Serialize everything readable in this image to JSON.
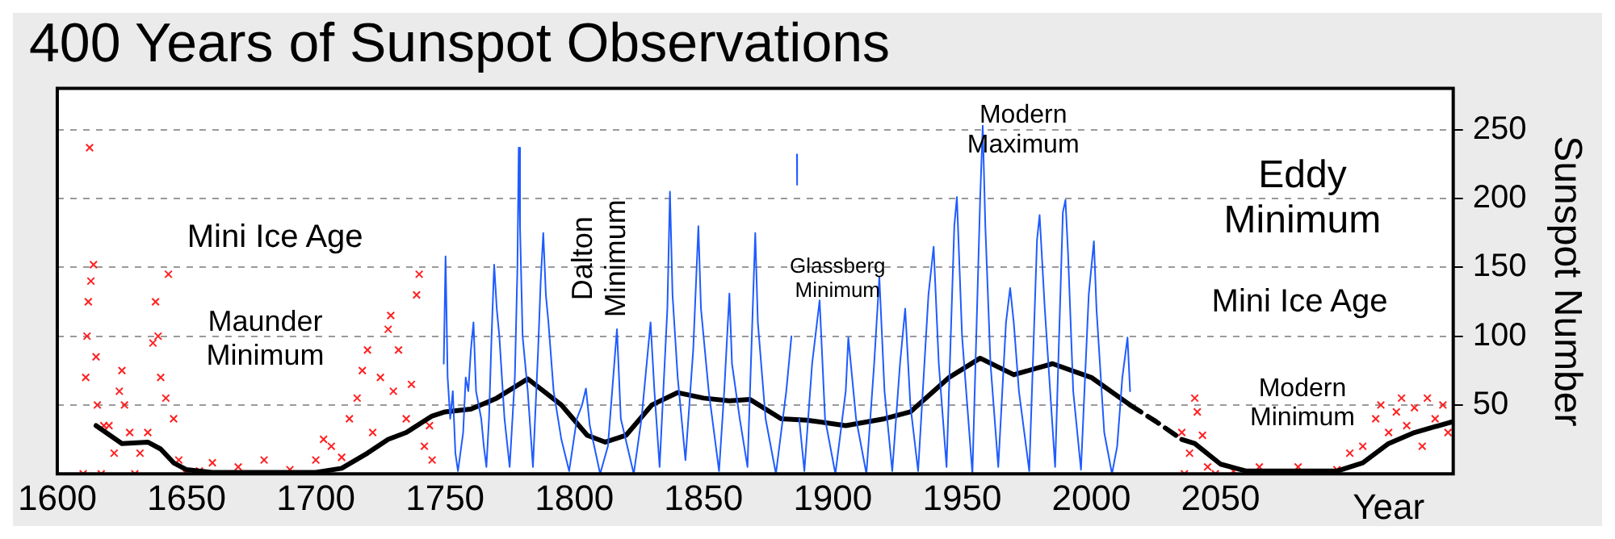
{
  "chart_data": {
    "type": "line",
    "title": "400 Years of Sunspot Observations",
    "xlabel": "Year",
    "ylabel": "Sunspot Number",
    "xlim": [
      1600,
      2140
    ],
    "xticks": [
      1600,
      1650,
      1700,
      1750,
      1800,
      1850,
      1900,
      1950,
      2000,
      2050
    ],
    "ylim": [
      0,
      280
    ],
    "yticks": [
      50,
      100,
      150,
      200,
      250
    ],
    "grid": "y",
    "legend": false,
    "series": [
      {
        "type": "scatter",
        "marker": "cross",
        "color": "#ff2020",
        "x": [
          1610,
          1611,
          1611.5,
          1612,
          1612.5,
          1613,
          1614,
          1615,
          1615.5,
          1617,
          1618,
          1620,
          1622,
          1624,
          1625,
          1626,
          1628,
          1630,
          1632,
          1635,
          1637,
          1638,
          1639,
          1640,
          1642,
          1643,
          1645,
          1647,
          1650,
          1655,
          1660,
          1670,
          1680,
          1690,
          1700,
          1703,
          1706,
          1710,
          1713,
          1716,
          1718,
          1720,
          1722,
          1725,
          1728,
          1729,
          1730,
          1732,
          1735,
          1737,
          1739,
          1740,
          1742,
          1744,
          1745,
          2035,
          2036,
          2038,
          2040,
          2041,
          2043,
          2045,
          2048,
          2055,
          2065,
          2080,
          2095,
          2100,
          2105,
          2110,
          2112,
          2115,
          2118,
          2120,
          2122,
          2125,
          2128,
          2130,
          2133,
          2136,
          2138
        ],
        "values": [
          0,
          70,
          100,
          125,
          237,
          140,
          152,
          85,
          50,
          0,
          35,
          35,
          15,
          60,
          75,
          50,
          30,
          0,
          15,
          30,
          95,
          125,
          100,
          70,
          55,
          145,
          40,
          10,
          0,
          2,
          8,
          5,
          10,
          3,
          10,
          25,
          20,
          12,
          40,
          55,
          75,
          90,
          30,
          70,
          105,
          115,
          60,
          90,
          40,
          65,
          130,
          145,
          20,
          35,
          10,
          30,
          0,
          15,
          55,
          45,
          28,
          5,
          0,
          2,
          5,
          5,
          3,
          15,
          20,
          40,
          50,
          30,
          45,
          55,
          35,
          48,
          20,
          55,
          40,
          50,
          30
        ]
      },
      {
        "type": "line",
        "marker": "none",
        "color": "#1f5cff",
        "x": [
          1749.5,
          1750.2,
          1751,
          1752,
          1753,
          1754,
          1755,
          1757,
          1758,
          1759,
          1760,
          1761,
          1762,
          1764,
          1765,
          1766,
          1767,
          1768,
          1769,
          1770,
          1771,
          1773,
          1775,
          1777,
          1778,
          1778.5,
          1779,
          1780,
          1782,
          1784,
          1786,
          1787,
          1788,
          1789,
          1790,
          1792,
          1795,
          1798,
          1801,
          1803,
          1804.5,
          1806,
          1810,
          1813,
          1816.5,
          1818,
          1823,
          1826,
          1829.5,
          1831,
          1833,
          1836,
          1837,
          1838,
          1840,
          1843,
          1846,
          1848,
          1849,
          1852,
          1856,
          1858,
          1860,
          1861,
          1864,
          1867,
          1870,
          1871,
          1874,
          1878,
          1882,
          1884,
          1886,
          1886.1,
          1886.2,
          1886.3,
          1887,
          1889,
          1892,
          1894.9,
          1897,
          1901,
          1905,
          1906,
          1909,
          1913,
          1916,
          1918,
          1920,
          1923,
          1926,
          1928,
          1930,
          1933,
          1937,
          1939,
          1941,
          1944,
          1947,
          1948,
          1950,
          1954,
          1957,
          1958,
          1959,
          1961,
          1964,
          1967,
          1968.6,
          1970,
          1972,
          1976,
          1979,
          1980,
          1982,
          1986,
          1989,
          1990,
          1991,
          1993,
          1996,
          1999,
          2001,
          2002,
          2005,
          2008,
          2010,
          2012,
          2014,
          2015
        ],
        "values": [
          80,
          158,
          70,
          40,
          60,
          15,
          2,
          30,
          70,
          60,
          90,
          110,
          60,
          40,
          20,
          5,
          40,
          100,
          152,
          120,
          100,
          40,
          5,
          70,
          150,
          237,
          180,
          100,
          60,
          5,
          90,
          140,
          175,
          130,
          110,
          60,
          25,
          2,
          40,
          50,
          62,
          35,
          0,
          20,
          105,
          40,
          0,
          40,
          110,
          60,
          5,
          120,
          205,
          130,
          70,
          10,
          90,
          180,
          120,
          60,
          2,
          60,
          131,
          80,
          40,
          5,
          175,
          110,
          40,
          0,
          60,
          100,
          null,
          232,
          210,
          null,
          40,
          2,
          80,
          126,
          40,
          0,
          60,
          99,
          40,
          0,
          80,
          143,
          60,
          2,
          80,
          120,
          50,
          2,
          130,
          165,
          80,
          5,
          180,
          201,
          100,
          0,
          200,
          253,
          180,
          80,
          5,
          110,
          135,
          110,
          60,
          2,
          170,
          188,
          120,
          5,
          190,
          199,
          160,
          60,
          3,
          130,
          169,
          120,
          30,
          0,
          20,
          70,
          99,
          60
        ]
      },
      {
        "type": "line",
        "marker": "none",
        "line_style": "solid",
        "color": "#000000",
        "x": [
          1615,
          1625,
          1635,
          1640,
          1645,
          1650,
          1660,
          1700,
          1710,
          1720,
          1728,
          1735,
          1745,
          1750,
          1760,
          1770,
          1782,
          1795,
          1805,
          1812,
          1820,
          1830,
          1840,
          1850,
          1860,
          1868,
          1880,
          1890,
          1905,
          1920,
          1930,
          1945,
          1957,
          1970,
          1985,
          2000,
          2015
        ],
        "values": [
          35,
          22,
          23,
          18,
          8,
          3,
          1,
          1,
          4,
          15,
          25,
          30,
          42,
          45,
          47,
          55,
          69,
          50,
          28,
          23,
          28,
          50,
          59,
          55,
          53,
          54,
          40,
          39,
          35,
          40,
          45,
          70,
          84,
          72,
          80,
          70,
          50
        ]
      },
      {
        "type": "line",
        "marker": "none",
        "line_style": "dashed",
        "color": "#000000",
        "x": [
          2015,
          2025,
          2035
        ],
        "values": [
          50,
          38,
          25
        ]
      },
      {
        "type": "line",
        "marker": "none",
        "line_style": "solid",
        "color": "#000000",
        "x": [
          2035,
          2040,
          2050,
          2060,
          2095,
          2105,
          2115,
          2125,
          2140
        ],
        "values": [
          25,
          22,
          7,
          2,
          2,
          8,
          22,
          30,
          38
        ]
      }
    ],
    "annotations": [
      "Mini Ice Age",
      "Maunder\nMinimum",
      "Dalton\nMinimum",
      "Glassberg\nMinimum",
      "Modern\nMaximum",
      "Eddy\nMinimum",
      "Mini Ice Age",
      "Modern\nMinimum"
    ]
  }
}
